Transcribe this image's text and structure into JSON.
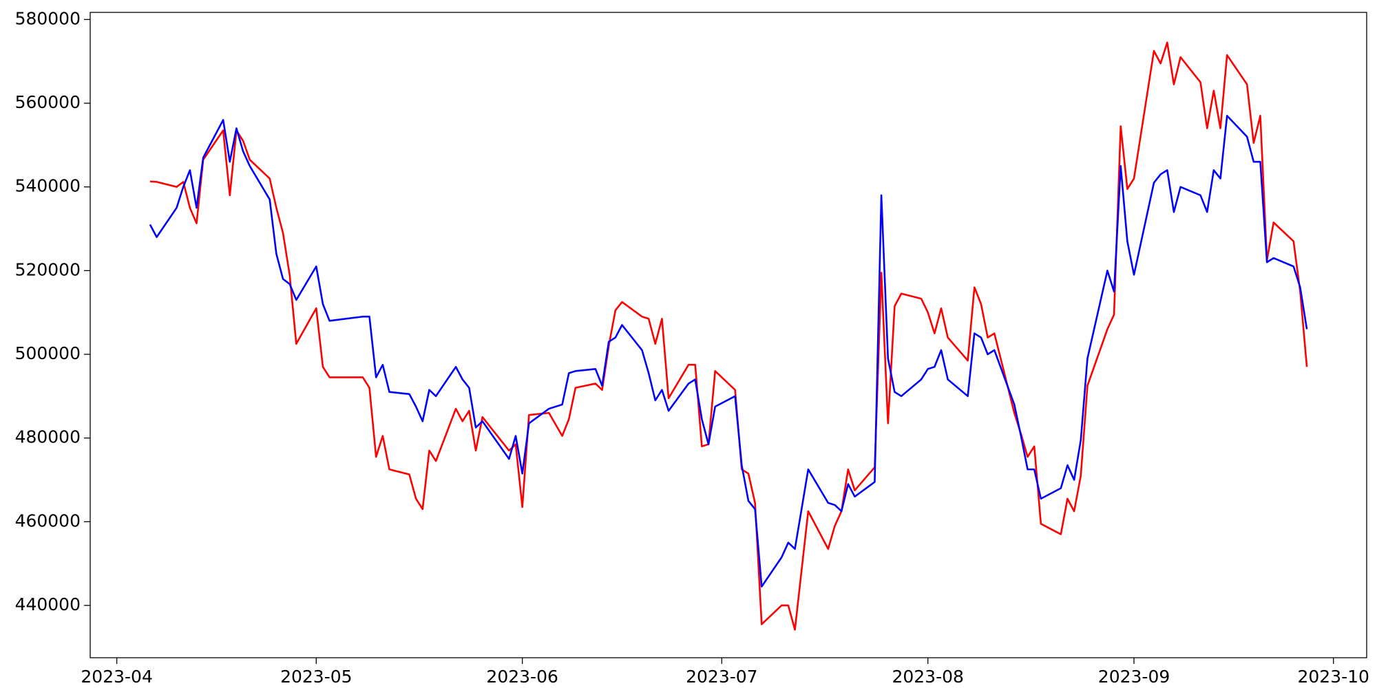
{
  "chart_data": {
    "type": "line",
    "x": [
      "2023-04-06",
      "2023-04-07",
      "2023-04-10",
      "2023-04-11",
      "2023-04-12",
      "2023-04-13",
      "2023-04-14",
      "2023-04-17",
      "2023-04-18",
      "2023-04-19",
      "2023-04-20",
      "2023-04-21",
      "2023-04-24",
      "2023-04-25",
      "2023-04-26",
      "2023-04-27",
      "2023-04-28",
      "2023-05-01",
      "2023-05-02",
      "2023-05-03",
      "2023-05-08",
      "2023-05-09",
      "2023-05-10",
      "2023-05-11",
      "2023-05-12",
      "2023-05-15",
      "2023-05-16",
      "2023-05-17",
      "2023-05-18",
      "2023-05-19",
      "2023-05-22",
      "2023-05-23",
      "2023-05-24",
      "2023-05-25",
      "2023-05-26",
      "2023-05-30",
      "2023-05-31",
      "2023-06-01",
      "2023-06-02",
      "2023-06-05",
      "2023-06-07",
      "2023-06-08",
      "2023-06-09",
      "2023-06-12",
      "2023-06-13",
      "2023-06-14",
      "2023-06-15",
      "2023-06-16",
      "2023-06-19",
      "2023-06-20",
      "2023-06-21",
      "2023-06-22",
      "2023-06-23",
      "2023-06-26",
      "2023-06-27",
      "2023-06-28",
      "2023-06-29",
      "2023-06-30",
      "2023-07-03",
      "2023-07-04",
      "2023-07-05",
      "2023-07-06",
      "2023-07-07",
      "2023-07-10",
      "2023-07-11",
      "2023-07-12",
      "2023-07-14",
      "2023-07-17",
      "2023-07-18",
      "2023-07-19",
      "2023-07-20",
      "2023-07-21",
      "2023-07-24",
      "2023-07-25",
      "2023-07-26",
      "2023-07-27",
      "2023-07-28",
      "2023-07-31",
      "2023-08-01",
      "2023-08-02",
      "2023-08-03",
      "2023-08-04",
      "2023-08-07",
      "2023-08-08",
      "2023-08-09",
      "2023-08-10",
      "2023-08-11",
      "2023-08-14",
      "2023-08-15",
      "2023-08-16",
      "2023-08-17",
      "2023-08-18",
      "2023-08-21",
      "2023-08-22",
      "2023-08-23",
      "2023-08-24",
      "2023-08-25",
      "2023-08-28",
      "2023-08-29",
      "2023-08-30",
      "2023-08-31",
      "2023-09-01",
      "2023-09-04",
      "2023-09-05",
      "2023-09-06",
      "2023-09-07",
      "2023-09-08",
      "2023-09-11",
      "2023-09-12",
      "2023-09-13",
      "2023-09-14",
      "2023-09-15",
      "2023-09-18",
      "2023-09-19",
      "2023-09-20",
      "2023-09-21",
      "2023-09-22",
      "2023-09-25",
      "2023-09-26",
      "2023-09-27"
    ],
    "series": [
      {
        "color": "#ff0000",
        "values": [
          541300,
          541200,
          540000,
          541200,
          535000,
          531300,
          546500,
          553500,
          538000,
          553500,
          551000,
          546500,
          542000,
          535000,
          529000,
          519000,
          502500,
          511000,
          497000,
          494500,
          494500,
          492000,
          475500,
          480500,
          472500,
          471300,
          465500,
          463000,
          477000,
          474500,
          487000,
          484000,
          486500,
          477000,
          485000,
          477000,
          478500,
          463500,
          485500,
          486000,
          480500,
          484500,
          492000,
          493000,
          491500,
          502000,
          510500,
          512500,
          509000,
          508500,
          502500,
          508500,
          489500,
          497500,
          497500,
          478000,
          478500,
          496000,
          491500,
          472500,
          471500,
          464500,
          435500,
          440000,
          440000,
          434200,
          462500,
          453500,
          459000,
          462500,
          472500,
          467500,
          473000,
          519500,
          483500,
          511500,
          514500,
          513300,
          510000,
          505000,
          511000,
          504000,
          498500,
          516000,
          512000,
          504000,
          505000,
          486000,
          481000,
          475500,
          478000,
          459500,
          457000,
          465500,
          462500,
          471000,
          492500,
          506000,
          509500,
          554500,
          539500,
          542000,
          572500,
          569500,
          574500,
          564500,
          571000,
          565000,
          554000,
          563000,
          554000,
          571500,
          564500,
          550500,
          557000,
          522500,
          531500,
          527000,
          515000,
          497000
        ]
      },
      {
        "color": "#0000ff",
        "values": [
          531000,
          528000,
          535000,
          540000,
          544000,
          535000,
          547000,
          556000,
          546000,
          554000,
          548500,
          545000,
          537000,
          524000,
          518000,
          516800,
          513000,
          521000,
          512000,
          508000,
          509000,
          509000,
          494500,
          497500,
          491000,
          490500,
          487500,
          484000,
          491500,
          490000,
          497000,
          494000,
          492000,
          482500,
          484000,
          475000,
          480500,
          471500,
          483500,
          487000,
          488000,
          495500,
          496000,
          496500,
          492500,
          503000,
          504000,
          507000,
          501000,
          495500,
          489000,
          491500,
          486500,
          493000,
          494000,
          484500,
          478500,
          487500,
          490000,
          473500,
          465000,
          463000,
          444500,
          451500,
          455000,
          453500,
          472500,
          464500,
          464000,
          462500,
          469000,
          466000,
          469500,
          538000,
          499000,
          491000,
          490000,
          494000,
          496500,
          497000,
          501000,
          494000,
          490000,
          505000,
          504000,
          500000,
          501000,
          488000,
          480500,
          472500,
          472500,
          465500,
          468000,
          473500,
          470000,
          479500,
          499000,
          520000,
          515000,
          545000,
          527000,
          519000,
          541000,
          543000,
          544000,
          534000,
          540000,
          538000,
          534000,
          544000,
          542000,
          557000,
          552000,
          546000,
          546000,
          522000,
          523000,
          521000,
          516000,
          506000
        ]
      }
    ],
    "xlim": [
      "2023-03-28",
      "2023-10-06"
    ],
    "xticks": [
      {
        "value": "2023-04-01",
        "label": "2023-04"
      },
      {
        "value": "2023-05-01",
        "label": "2023-05"
      },
      {
        "value": "2023-06-01",
        "label": "2023-06"
      },
      {
        "value": "2023-07-01",
        "label": "2023-07"
      },
      {
        "value": "2023-08-01",
        "label": "2023-08"
      },
      {
        "value": "2023-09-01",
        "label": "2023-09"
      },
      {
        "value": "2023-10-01",
        "label": "2023-10"
      }
    ],
    "ylim": [
      427500,
      581700
    ],
    "yticks": [
      440000,
      460000,
      480000,
      500000,
      520000,
      540000,
      560000,
      580000
    ]
  }
}
